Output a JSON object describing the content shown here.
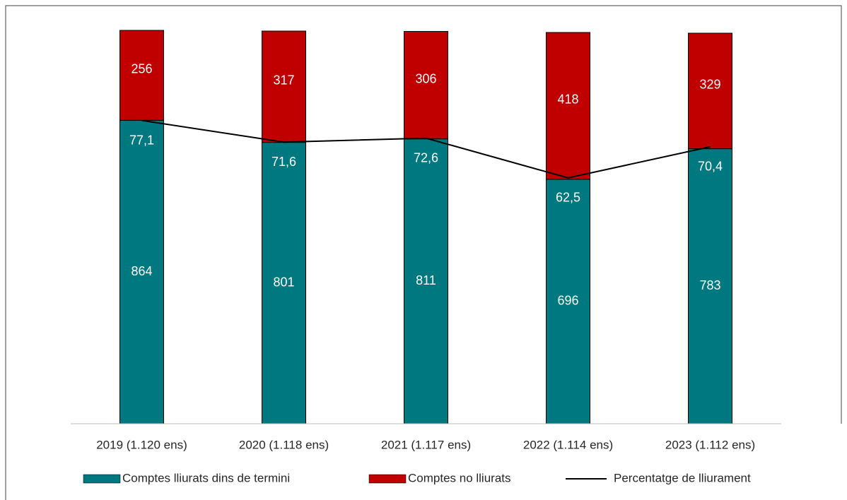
{
  "chart_data": {
    "type": "bar",
    "categories": [
      "2019 (1.120 ens)",
      "2020 (1.118 ens)",
      "2021 (1.117 ens)",
      "2022 (1.114 ens)",
      "2023 (1.112 ens)"
    ],
    "series": [
      {
        "name": "Comptes lliurats dins de termini",
        "color": "#00787f",
        "values": [
          864,
          801,
          811,
          696,
          783
        ]
      },
      {
        "name": "Comptes no lliurats",
        "color": "#c00000",
        "values": [
          256,
          317,
          306,
          418,
          329
        ]
      },
      {
        "name": "Percentatge de lliurament",
        "type": "line",
        "axis": "y2",
        "color": "#000000",
        "values": [
          77.1,
          71.6,
          72.6,
          62.5,
          70.4
        ],
        "value_labels": [
          "77,1",
          "71,6",
          "72,6",
          "62,5",
          "70,4"
        ]
      }
    ],
    "stacked": true,
    "ylim": [
      0,
      1120
    ],
    "y2lim": [
      0,
      100
    ],
    "legend": "bottom"
  }
}
